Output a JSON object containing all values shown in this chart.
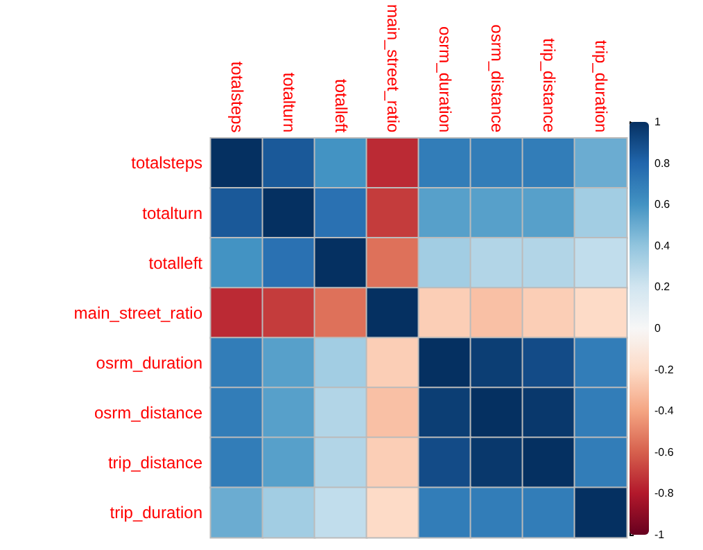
{
  "chart_data": {
    "type": "heatmap",
    "categories": [
      "totalsteps",
      "totalturn",
      "totalleft",
      "main_street_ratio",
      "osrm_duration",
      "osrm_distance",
      "trip_distance",
      "trip_duration"
    ],
    "y_categories": [
      "totalsteps",
      "totalturn",
      "totalleft",
      "main_street_ratio",
      "osrm_duration",
      "osrm_distance",
      "trip_distance",
      "trip_duration"
    ],
    "cells": [
      [
        1,
        0.85,
        0.6,
        -0.75,
        0.7,
        0.7,
        0.7,
        0.5
      ],
      [
        0.85,
        1,
        0.75,
        -0.7,
        0.55,
        0.55,
        0.55,
        0.35
      ],
      [
        0.6,
        0.75,
        1,
        -0.55,
        0.35,
        0.3,
        0.3,
        0.25
      ],
      [
        -0.75,
        -0.7,
        -0.55,
        1,
        -0.25,
        -0.3,
        -0.25,
        -0.2
      ],
      [
        0.7,
        0.55,
        0.35,
        -0.25,
        1,
        0.95,
        0.9,
        0.7
      ],
      [
        0.7,
        0.55,
        0.3,
        -0.3,
        0.95,
        1,
        0.97,
        0.7
      ],
      [
        0.7,
        0.55,
        0.3,
        -0.25,
        0.9,
        0.97,
        1,
        0.7
      ],
      [
        0.5,
        0.35,
        0.25,
        -0.2,
        0.7,
        0.7,
        0.7,
        1
      ]
    ],
    "clim": [
      -1,
      1
    ],
    "cticks": [
      -1,
      -0.8,
      -0.6,
      -0.4,
      -0.2,
      0,
      0.2,
      0.4,
      0.6,
      0.8,
      1
    ]
  }
}
